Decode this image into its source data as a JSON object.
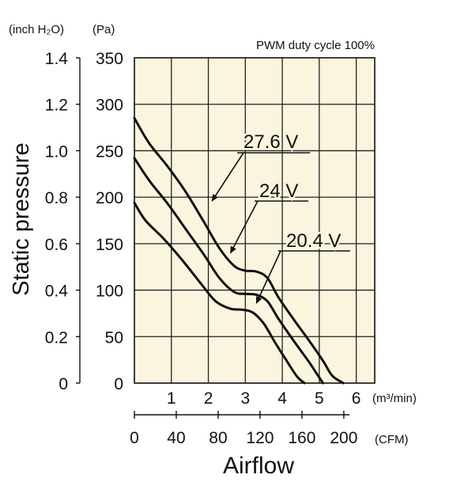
{
  "chart_data": {
    "type": "line",
    "title": "PWM duty cycle 100%",
    "ylabel": "Static pressure",
    "xlabel": "Airflow",
    "y_unit_left": "(inch H₂O)",
    "y_unit_right": "(Pa)",
    "x_unit_top": "(m³/min)",
    "x_unit_bottom": "(CFM)",
    "xlim": [
      0,
      6.5
    ],
    "ylim": [
      0,
      350
    ],
    "x_ticks": [
      "1",
      "2",
      "3",
      "4",
      "5",
      "6"
    ],
    "x_ticks_cfm": [
      "0",
      "40",
      "80",
      "120",
      "160",
      "200"
    ],
    "y_ticks_pa": [
      "0",
      "50",
      "100",
      "150",
      "200",
      "250",
      "300",
      "350"
    ],
    "y_ticks_inch": [
      "0",
      "0.2",
      "0.4",
      "0.6",
      "0.8",
      "1.0",
      "1.2",
      "1.4"
    ],
    "grid": true,
    "background_color": "#fbf4df",
    "series": [
      {
        "name": "27.6 V",
        "x": [
          0,
          0.4,
          0.9,
          1.4,
          1.9,
          2.3,
          2.7,
          3.0,
          3.3,
          3.6,
          3.9,
          4.3,
          4.7,
          5.1,
          5.35,
          5.65
        ],
        "y": [
          285,
          258,
          233,
          205,
          172,
          145,
          126,
          121,
          120,
          113,
          92,
          69,
          47,
          24,
          8,
          0
        ]
      },
      {
        "name": "24 V",
        "x": [
          0,
          0.4,
          0.9,
          1.4,
          1.9,
          2.3,
          2.7,
          3.0,
          3.3,
          3.6,
          3.9,
          4.3,
          4.7,
          4.9,
          5.1
        ],
        "y": [
          242,
          218,
          193,
          165,
          137,
          113,
          98,
          96,
          95,
          88,
          69,
          46,
          24,
          12,
          0
        ]
      },
      {
        "name": "20.4 V",
        "x": [
          0,
          0.3,
          0.8,
          1.3,
          1.8,
          2.2,
          2.6,
          2.9,
          3.2,
          3.5,
          3.8,
          4.1,
          4.4,
          4.6
        ],
        "y": [
          194,
          175,
          155,
          132,
          107,
          88,
          80,
          79,
          76,
          64,
          44,
          25,
          7,
          0
        ]
      }
    ],
    "annotations": [
      {
        "text": "27.6 V",
        "target_series": "27.6 V",
        "arrow_to": [
          2.1,
          196
        ]
      },
      {
        "text": "24 V",
        "target_series": "24 V",
        "arrow_to": [
          2.6,
          140
        ]
      },
      {
        "text": "20.4 V",
        "target_series": "20.4 V",
        "arrow_to": [
          3.3,
          86
        ]
      }
    ]
  }
}
